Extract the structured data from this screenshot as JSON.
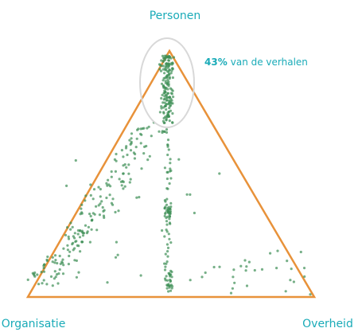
{
  "labels": {
    "top": "Personen",
    "left": "Organisatie",
    "right": "Overheid"
  },
  "annotation": {
    "percent": {
      "value": 43,
      "label": "43%"
    },
    "text": "van de verhalen"
  }
}
